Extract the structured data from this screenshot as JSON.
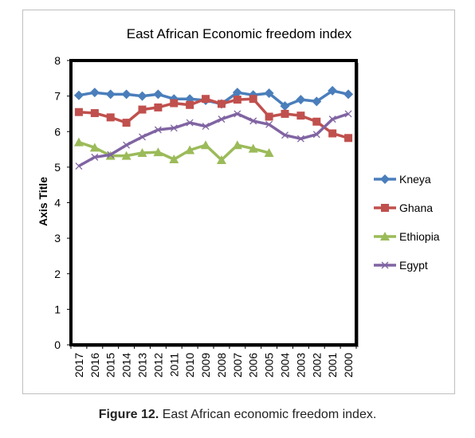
{
  "chart_data": {
    "type": "line",
    "title": "East African Economic freedom index",
    "xlabel": "",
    "ylabel": "Axis Title",
    "ylim": [
      0,
      8
    ],
    "yticks": [
      0,
      1,
      2,
      3,
      4,
      5,
      6,
      7,
      8
    ],
    "grid": false,
    "legend": "right",
    "categories": [
      "2017",
      "2016",
      "2015",
      "2014",
      "2013",
      "2012",
      "2011",
      "2010",
      "2009",
      "2008",
      "2007",
      "2006",
      "2005",
      "2004",
      "2003",
      "2002",
      "2001",
      "2000"
    ],
    "series": [
      {
        "name": "Kneya",
        "color": "#4a7ebb",
        "marker": "diamond",
        "values": [
          7.02,
          7.1,
          7.05,
          7.05,
          7.0,
          7.05,
          6.92,
          6.92,
          6.88,
          6.78,
          7.1,
          7.03,
          7.08,
          6.72,
          6.9,
          6.85,
          7.15,
          7.05
        ]
      },
      {
        "name": "Ghana",
        "color": "#c0504d",
        "marker": "square",
        "values": [
          6.55,
          6.52,
          6.4,
          6.25,
          6.62,
          6.68,
          6.8,
          6.75,
          6.92,
          6.78,
          6.9,
          6.92,
          6.42,
          6.5,
          6.45,
          6.28,
          5.95,
          5.82
        ]
      },
      {
        "name": "Ethiopia",
        "color": "#9bbb59",
        "marker": "triangle",
        "values": [
          5.7,
          5.55,
          5.32,
          5.32,
          5.4,
          5.42,
          5.22,
          5.48,
          5.62,
          5.2,
          5.62,
          5.52,
          5.4,
          null,
          null,
          null,
          null,
          null
        ]
      },
      {
        "name": "Egypt",
        "color": "#8064a2",
        "marker": "x",
        "values": [
          5.03,
          5.28,
          5.35,
          5.62,
          5.85,
          6.05,
          6.1,
          6.25,
          6.15,
          6.35,
          6.5,
          6.3,
          6.2,
          5.9,
          5.8,
          5.92,
          6.35,
          6.5
        ]
      }
    ]
  },
  "caption": {
    "label": "Figure 12.",
    "text": " East African economic freedom index."
  }
}
